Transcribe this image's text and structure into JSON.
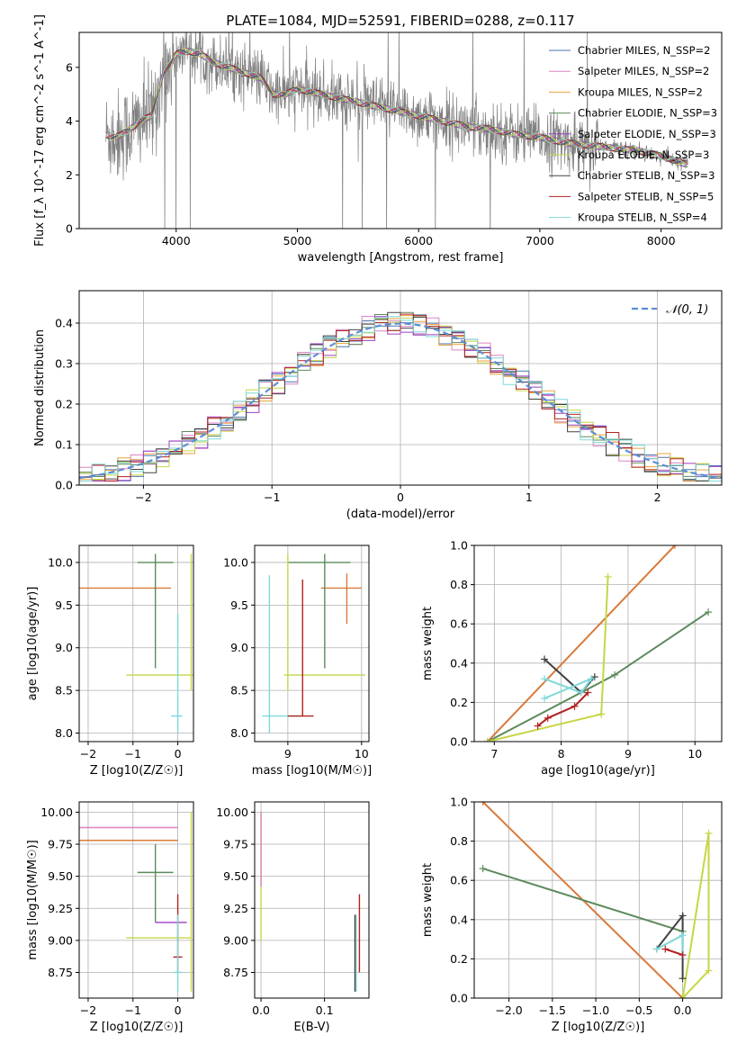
{
  "figure": {
    "title": "PLATE=1084, MJD=52591, FIBERID=0288, z=0.117"
  },
  "chart_data": [
    {
      "id": "spectrum",
      "type": "line",
      "xlabel": "wavelength [Angstrom, rest frame]",
      "ylabel": "Flux [f_λ 10^-17 erg cm^-2 s^-1 A^-1]",
      "xlim": [
        3200,
        8500
      ],
      "ylim": [
        0,
        7.3
      ],
      "xticks": [
        4000,
        5000,
        6000,
        7000,
        8000
      ],
      "yticks": [
        0,
        2,
        4,
        6
      ],
      "grid": false,
      "legend_position": "top-right",
      "legend": [
        {
          "text": "Chabrier MILES, N_SSP=2",
          "color": "#4c72b0"
        },
        {
          "text": "Salpeter MILES, N_SSP=2",
          "color": "#dd84c4"
        },
        {
          "text": "Kroupa MILES, N_SSP=2",
          "color": "#e8a33d"
        },
        {
          "text": "Chabrier ELODIE, N_SSP=3",
          "color": "#5c8a5c"
        },
        {
          "text": "Salpeter ELODIE, N_SSP=3",
          "color": "#9b3fc6"
        },
        {
          "text": "Kroupa ELODIE, N_SSP=3",
          "color": "#c6d644"
        },
        {
          "text": "Chabrier STELIB, N_SSP=3",
          "color": "#404040"
        },
        {
          "text": "Salpeter STELIB, N_SSP=5",
          "color": "#b22222"
        },
        {
          "text": "Kroupa STELIB, N_SSP=4",
          "color": "#7fd8d8"
        }
      ],
      "continuum": {
        "x": [
          3420,
          3500,
          3550,
          3650,
          3700,
          3750,
          3800,
          3900,
          3950,
          4000,
          4100,
          4200,
          4300,
          4500,
          4700,
          4800,
          4850,
          4900,
          5000,
          5200,
          5400,
          5600,
          5800,
          6000,
          6200,
          6400,
          6600,
          6800,
          7000,
          7200,
          7400,
          7600,
          7800,
          8000,
          8200
        ],
        "y": [
          3.5,
          3.4,
          3.5,
          3.8,
          4.0,
          4.1,
          4.2,
          5.9,
          6.1,
          6.5,
          6.6,
          6.5,
          6.2,
          5.9,
          5.6,
          5.0,
          5.0,
          5.0,
          5.2,
          5.0,
          4.8,
          4.6,
          4.4,
          4.2,
          4.0,
          3.8,
          3.7,
          3.5,
          3.4,
          3.2,
          3.1,
          3.0,
          2.9,
          2.7,
          2.4
        ]
      },
      "observed_noise_amplitude": 1.1
    },
    {
      "id": "residuals",
      "type": "bar",
      "xlabel": "(data-model)/error",
      "ylabel": "Normed distribution",
      "xlim": [
        -2.5,
        2.5
      ],
      "ylim": [
        0,
        0.48
      ],
      "xticks": [
        -2,
        -1,
        0,
        1,
        2
      ],
      "yticks": [
        0.0,
        0.1,
        0.2,
        0.3,
        0.4
      ],
      "grid": true,
      "legend_position": "top-right",
      "legend": [
        {
          "text": "𝒩(0, 1)",
          "color": "#5b8fd6",
          "style": "dashed"
        }
      ],
      "bin_width": 0.1,
      "series_colors": [
        "#4c72b0",
        "#dd84c4",
        "#e8a33d",
        "#5c8a5c",
        "#9b3fc6",
        "#c6d644",
        "#404040",
        "#b22222",
        "#7fd8d8"
      ]
    },
    {
      "id": "age-vs-Z",
      "type": "scatter",
      "xlabel": "Z [log10(Z/Z☉)]",
      "ylabel": "age [log10(age/yr)]",
      "xlim": [
        -2.2,
        0.35
      ],
      "ylim": [
        7.9,
        10.2
      ],
      "xticks": [
        -2,
        -1,
        0
      ],
      "yticks": [
        8.0,
        8.5,
        9.0,
        9.5,
        10.0
      ],
      "grid": true,
      "errorbars": [
        {
          "x": -2.3,
          "y": 9.7,
          "xlo": -2.3,
          "xhi": -0.15,
          "ylo": 9.28,
          "yhi": 9.87,
          "color": "#d97a3a"
        },
        {
          "x": -0.5,
          "y": 10.0,
          "xlo": -0.9,
          "xhi": -0.1,
          "ylo": 8.76,
          "yhi": 10.1,
          "color": "#5c8a5c"
        },
        {
          "x": 0.3,
          "y": 8.68,
          "xlo": -1.15,
          "xhi": 0.35,
          "ylo": 8.5,
          "yhi": 10.1,
          "color": "#c6d644"
        },
        {
          "x": 0.0,
          "y": 8.2,
          "xlo": -0.15,
          "xhi": 0.1,
          "ylo": 8.0,
          "yhi": 9.4,
          "color": "#7fd8d8"
        }
      ]
    },
    {
      "id": "age-vs-mass",
      "type": "scatter",
      "xlabel": "mass [log10(M/M☉)]",
      "ylabel": "",
      "xlim": [
        8.55,
        10.1
      ],
      "ylim": [
        7.9,
        10.2
      ],
      "xticks": [
        9,
        10
      ],
      "yticks": [
        8.0,
        8.5,
        9.0,
        9.5,
        10.0
      ],
      "grid": true,
      "errorbars": [
        {
          "x": 9.8,
          "y": 9.7,
          "xlo": 9.45,
          "xhi": 10.0,
          "ylo": 9.28,
          "yhi": 9.87,
          "color": "#d97a3a"
        },
        {
          "x": 9.5,
          "y": 10.0,
          "xlo": 9.0,
          "xhi": 9.85,
          "ylo": 8.76,
          "yhi": 10.1,
          "color": "#5c8a5c"
        },
        {
          "x": 9.0,
          "y": 8.68,
          "xlo": 8.95,
          "xhi": 10.05,
          "ylo": 8.5,
          "yhi": 10.1,
          "color": "#c6d644"
        },
        {
          "x": 8.75,
          "y": 8.2,
          "xlo": 8.65,
          "xhi": 9.2,
          "ylo": 8.0,
          "yhi": 9.85,
          "color": "#7fd8d8"
        },
        {
          "x": 9.2,
          "y": 8.2,
          "xlo": 9.0,
          "xhi": 9.35,
          "ylo": 8.2,
          "yhi": 9.8,
          "color": "#b22222"
        }
      ]
    },
    {
      "id": "weight-vs-age",
      "type": "line",
      "xlabel": "age [log10(age/yr)]",
      "ylabel": "mass weight",
      "xlim": [
        6.7,
        10.4
      ],
      "ylim": [
        0,
        1.0
      ],
      "xticks": [
        7,
        8,
        9,
        10
      ],
      "yticks": [
        0.0,
        0.2,
        0.4,
        0.6,
        0.8,
        1.0
      ],
      "grid": true,
      "series": [
        {
          "color": "#d97a3a",
          "x": [
            6.9,
            9.7
          ],
          "y": [
            0.0,
            1.0
          ]
        },
        {
          "color": "#5c8a5c",
          "x": [
            6.9,
            8.8,
            10.2
          ],
          "y": [
            0.0,
            0.34,
            0.66
          ]
        },
        {
          "color": "#c6d644",
          "x": [
            6.9,
            8.6,
            8.7,
            8.6
          ],
          "y": [
            0.0,
            0.14,
            0.84,
            0.14
          ]
        },
        {
          "color": "#404040",
          "x": [
            7.75,
            8.3,
            8.5
          ],
          "y": [
            0.42,
            0.25,
            0.33
          ]
        },
        {
          "color": "#7fd8d8",
          "x": [
            7.75,
            8.3,
            8.45,
            7.75
          ],
          "y": [
            0.32,
            0.25,
            0.32,
            0.22
          ]
        },
        {
          "color": "#b22222",
          "x": [
            7.65,
            7.8,
            8.2,
            8.4
          ],
          "y": [
            0.08,
            0.12,
            0.18,
            0.25
          ]
        }
      ]
    },
    {
      "id": "mass-vs-Z",
      "type": "scatter",
      "xlabel": "Z [log10(Z/Z☉)]",
      "ylabel": "mass [log10(M/M☉)]",
      "xlim": [
        -2.2,
        0.35
      ],
      "ylim": [
        8.55,
        10.08
      ],
      "xticks": [
        -2,
        -1,
        0
      ],
      "yticks": [
        8.75,
        9.0,
        9.25,
        9.5,
        9.75,
        10.0
      ],
      "grid": true,
      "errorbars": [
        {
          "x": -2.3,
          "y": 9.78,
          "xlo": -2.3,
          "xhi": 0.0,
          "ylo": 9.42,
          "yhi": 10.0,
          "color": "#d97a3a"
        },
        {
          "x": -2.3,
          "y": 9.88,
          "xlo": -2.3,
          "xhi": 0.0,
          "ylo": 9.42,
          "yhi": 10.0,
          "color": "#dd84c4"
        },
        {
          "x": -0.5,
          "y": 9.53,
          "xlo": -0.9,
          "xhi": -0.1,
          "ylo": 9.14,
          "yhi": 9.75,
          "color": "#5c8a5c"
        },
        {
          "x": 0.3,
          "y": 9.02,
          "xlo": -1.15,
          "xhi": 0.3,
          "ylo": 8.6,
          "yhi": 10.0,
          "color": "#c6d644"
        },
        {
          "x": -0.5,
          "y": 9.14,
          "xlo": -0.5,
          "xhi": 0.2,
          "ylo": 9.14,
          "yhi": 9.14,
          "color": "#9b3fc6"
        },
        {
          "x": 0.0,
          "y": 8.87,
          "xlo": -0.1,
          "xhi": 0.1,
          "ylo": 8.75,
          "yhi": 9.36,
          "color": "#b22222"
        },
        {
          "x": 0.0,
          "y": 8.75,
          "xlo": -0.1,
          "xhi": 0.1,
          "ylo": 8.6,
          "yhi": 9.2,
          "color": "#7fd8d8"
        }
      ]
    },
    {
      "id": "mass-vs-ebv",
      "type": "scatter",
      "xlabel": "E(B-V)",
      "ylabel": "",
      "xlim": [
        -0.01,
        0.17
      ],
      "ylim": [
        8.55,
        10.08
      ],
      "xticks": [
        0.0,
        0.1
      ],
      "yticks": [
        8.75,
        9.0,
        9.25,
        9.5,
        9.75,
        10.0
      ],
      "grid": true,
      "errorbars": [
        {
          "x": 0.0,
          "y": 9.5,
          "xlo": 0.0,
          "xhi": 0.0,
          "ylo": 9.0,
          "yhi": 10.0,
          "color": "#c6d644"
        },
        {
          "x": 0.0,
          "y": 9.7,
          "xlo": 0.0,
          "xhi": 0.0,
          "ylo": 9.42,
          "yhi": 10.0,
          "color": "#dd84c4"
        },
        {
          "x": 0.155,
          "y": 9.2,
          "xlo": 0.155,
          "xhi": 0.155,
          "ylo": 8.75,
          "yhi": 9.36,
          "color": "#b22222"
        },
        {
          "x": 0.15,
          "y": 8.9,
          "xlo": 0.15,
          "xhi": 0.15,
          "ylo": 8.6,
          "yhi": 9.2,
          "color": "#7fd8d8"
        },
        {
          "x": 0.148,
          "y": 8.9,
          "xlo": 0.148,
          "xhi": 0.148,
          "ylo": 8.6,
          "yhi": 9.2,
          "color": "#404040"
        }
      ]
    },
    {
      "id": "weight-vs-Z",
      "type": "line",
      "xlabel": "Z [log10(Z/Z☉)]",
      "ylabel": "mass weight",
      "xlim": [
        -2.4,
        0.45
      ],
      "ylim": [
        0,
        1.0
      ],
      "xticks": [
        -2.0,
        -1.5,
        -1.0,
        -0.5,
        0.0
      ],
      "yticks": [
        0.0,
        0.2,
        0.4,
        0.6,
        0.8,
        1.0
      ],
      "grid": true,
      "series": [
        {
          "color": "#d97a3a",
          "x": [
            -2.3,
            0.0
          ],
          "y": [
            1.0,
            0.0
          ]
        },
        {
          "color": "#5c8a5c",
          "x": [
            -2.3,
            0.0
          ],
          "y": [
            0.66,
            0.34
          ]
        },
        {
          "color": "#c6d644",
          "x": [
            0.0,
            0.3,
            0.3,
            0.0
          ],
          "y": [
            0.0,
            0.84,
            0.14,
            0.0
          ]
        },
        {
          "color": "#404040",
          "x": [
            -0.3,
            0.0,
            0.0
          ],
          "y": [
            0.25,
            0.42,
            0.1
          ]
        },
        {
          "color": "#7fd8d8",
          "x": [
            -0.3,
            0.0,
            0.0
          ],
          "y": [
            0.25,
            0.32,
            0.22
          ]
        },
        {
          "color": "#b22222",
          "x": [
            -0.2,
            0.0
          ],
          "y": [
            0.25,
            0.22
          ]
        }
      ]
    }
  ]
}
